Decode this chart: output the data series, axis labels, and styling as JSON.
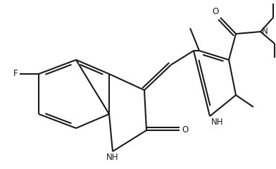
{
  "bg_color": "#ffffff",
  "line_color": "#1a1a1a",
  "line_width": 1.5,
  "font_size": 8.5,
  "figsize": [
    3.92,
    2.4
  ],
  "dpi": 100,
  "xlim": [
    0,
    392
  ],
  "ylim": [
    0,
    240
  ]
}
